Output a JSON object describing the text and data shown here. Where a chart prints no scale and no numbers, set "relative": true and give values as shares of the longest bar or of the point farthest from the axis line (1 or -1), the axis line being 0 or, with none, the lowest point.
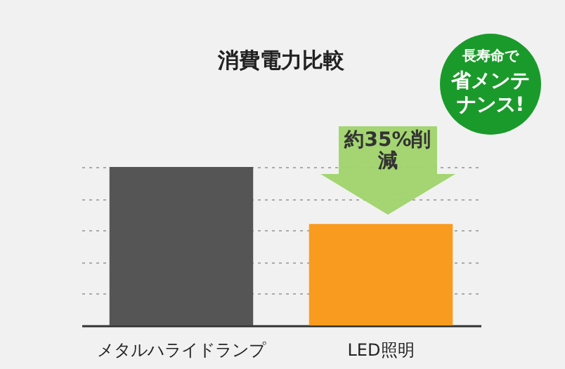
{
  "chart_data": {
    "type": "bar",
    "title": "消費電力比較",
    "categories": [
      "メタルハライドランプ",
      "LED照明"
    ],
    "values": [
      1,
      0.64
    ],
    "colors": [
      "#555555",
      "#f99b1e"
    ],
    "relative": true,
    "grid": "y",
    "annotations": [
      "約35%削減",
      "長寿命で",
      "省メンテナンス!"
    ]
  }
}
